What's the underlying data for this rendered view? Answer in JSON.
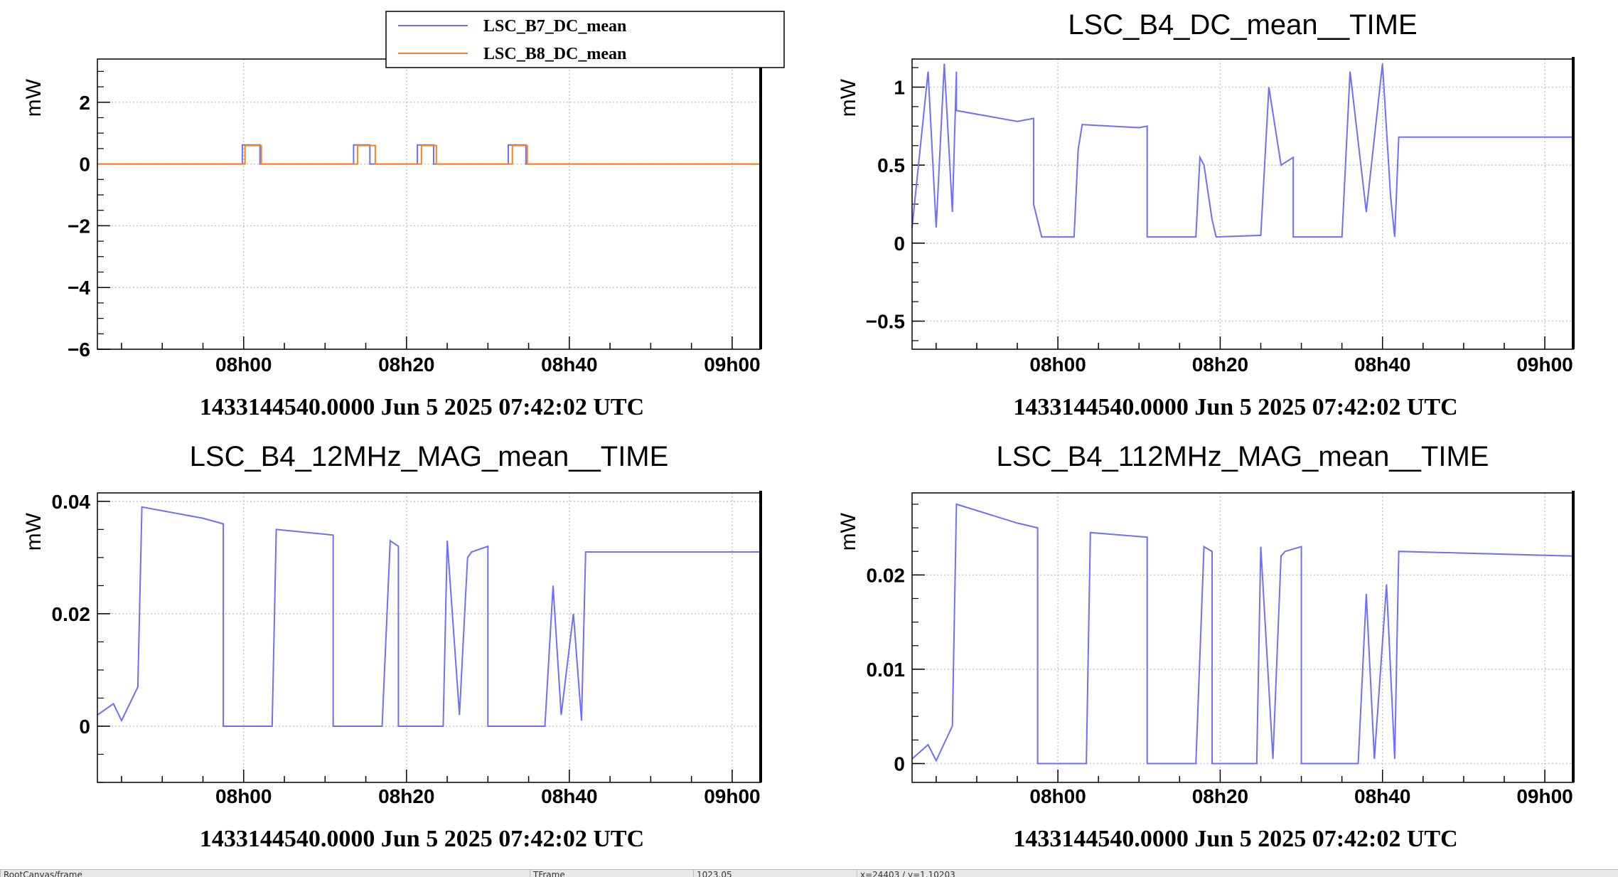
{
  "colors": {
    "blue": "#6e6eff",
    "orange": "#ff7f1f",
    "grid": "#c8c8c8",
    "axis": "#000000"
  },
  "statusbar": {
    "cells": [
      "RootCanvas/frame",
      "TFrame",
      "1023.05",
      "x=24403 / y=1.10203"
    ]
  },
  "chart_data": [
    {
      "type": "line",
      "panel": "top-left",
      "title": "",
      "ylabel": "mW",
      "xlabel": "1433144540.0000 Jun 5 2025 07:42:02 UTC",
      "time_axis": true,
      "xlim": [
        "07:42:02",
        "09:03:30"
      ],
      "ylim": [
        -6,
        3.4
      ],
      "xticks": [
        {
          "t": "08:00",
          "label": "08h00"
        },
        {
          "t": "08:20",
          "label": "08h20"
        },
        {
          "t": "08:40",
          "label": "08h40"
        },
        {
          "t": "09:00",
          "label": "09h00"
        }
      ],
      "yticks": [
        {
          "v": -6,
          "label": "−6"
        },
        {
          "v": -4,
          "label": "−4"
        },
        {
          "v": -2,
          "label": "−2"
        },
        {
          "v": 0,
          "label": "0"
        },
        {
          "v": 2,
          "label": "2"
        }
      ],
      "grid": true,
      "legend": {
        "placement": "top-right",
        "entries": [
          "LSC_B7_DC_mean",
          "LSC_B8_DC_mean"
        ]
      },
      "series": [
        {
          "name": "LSC_B7_DC_mean",
          "color": "blue",
          "x": [
            "07:42:02",
            "07:59:50",
            "07:59:50",
            "08:02:00",
            "08:02:00",
            "08:13:30",
            "08:13:30",
            "08:15:30",
            "08:15:30",
            "08:21:20",
            "08:21:20",
            "08:23:20",
            "08:23:20",
            "08:32:30",
            "08:32:30",
            "08:34:40",
            "08:34:40",
            "09:03:30"
          ],
          "values": [
            0,
            0,
            0.62,
            0.62,
            0,
            0,
            0.62,
            0.62,
            0,
            0,
            0.62,
            0.62,
            0,
            0,
            0.62,
            0.62,
            0,
            0
          ]
        },
        {
          "name": "LSC_B8_DC_mean",
          "color": "orange",
          "x": [
            "07:42:02",
            "08:00:10",
            "08:00:10",
            "08:02:10",
            "08:02:10",
            "08:14:00",
            "08:14:00",
            "08:16:10",
            "08:16:10",
            "08:21:50",
            "08:21:50",
            "08:23:40",
            "08:23:40",
            "08:33:00",
            "08:33:00",
            "08:34:50",
            "08:34:50",
            "09:03:30"
          ],
          "values": [
            0,
            0,
            0.6,
            0.6,
            0,
            0,
            0.6,
            0.6,
            0,
            0,
            0.6,
            0.6,
            0,
            0,
            0.6,
            0.6,
            0,
            0
          ]
        }
      ]
    },
    {
      "type": "line",
      "panel": "top-right",
      "title": "LSC_B4_DC_mean__TIME",
      "ylabel": "mW",
      "xlabel": "1433144540.0000 Jun 5 2025 07:42:02 UTC",
      "time_axis": true,
      "xlim": [
        "07:42:02",
        "09:03:30"
      ],
      "ylim": [
        -0.68,
        1.18
      ],
      "xticks": [
        {
          "t": "08:00",
          "label": "08h00"
        },
        {
          "t": "08:20",
          "label": "08h20"
        },
        {
          "t": "08:40",
          "label": "08h40"
        },
        {
          "t": "09:00",
          "label": "09h00"
        }
      ],
      "yticks": [
        {
          "v": -0.5,
          "label": "−0.5"
        },
        {
          "v": 0,
          "label": "0"
        },
        {
          "v": 0.5,
          "label": "0.5"
        },
        {
          "v": 1,
          "label": "1"
        }
      ],
      "grid": true,
      "series": [
        {
          "color": "blue",
          "x": [
            "07:42:02",
            "07:44:00",
            "07:45:00",
            "07:46:00",
            "07:47:00",
            "07:47:30",
            "07:47:30",
            "07:55:00",
            "07:57:00",
            "07:57:00",
            "07:58:00",
            "08:02:00",
            "08:02:30",
            "08:03:00",
            "08:10:00",
            "08:11:00",
            "08:11:00",
            "08:17:00",
            "08:17:30",
            "08:18:00",
            "08:19:00",
            "08:19:30",
            "08:25:00",
            "08:26:00",
            "08:27:30",
            "08:29:00",
            "08:29:00",
            "08:35:00",
            "08:36:00",
            "08:38:00",
            "08:40:00",
            "08:41:00",
            "08:41:30",
            "08:42:00",
            "09:03:30"
          ],
          "values": [
            0.1,
            1.1,
            0.1,
            1.15,
            0.2,
            1.1,
            0.85,
            0.78,
            0.8,
            0.25,
            0.04,
            0.04,
            0.6,
            0.76,
            0.74,
            0.75,
            0.04,
            0.04,
            0.55,
            0.5,
            0.15,
            0.04,
            0.05,
            1.0,
            0.5,
            0.55,
            0.04,
            0.04,
            1.1,
            0.2,
            1.15,
            0.3,
            0.04,
            0.68,
            0.68
          ]
        }
      ]
    },
    {
      "type": "line",
      "panel": "bottom-left",
      "title": "LSC_B4_12MHz_MAG_mean__TIME",
      "ylabel": "mW",
      "xlabel": "1433144540.0000 Jun 5 2025 07:42:02 UTC",
      "time_axis": true,
      "xlim": [
        "07:42:02",
        "09:03:30"
      ],
      "ylim": [
        -0.01,
        0.0415
      ],
      "xticks": [
        {
          "t": "08:00",
          "label": "08h00"
        },
        {
          "t": "08:20",
          "label": "08h20"
        },
        {
          "t": "08:40",
          "label": "08h40"
        },
        {
          "t": "09:00",
          "label": "09h00"
        }
      ],
      "yticks": [
        {
          "v": 0,
          "label": "0"
        },
        {
          "v": 0.02,
          "label": "0.02"
        },
        {
          "v": 0.04,
          "label": "0.04"
        }
      ],
      "grid": true,
      "series": [
        {
          "color": "blue",
          "x": [
            "07:42:02",
            "07:44:00",
            "07:45:00",
            "07:47:00",
            "07:47:30",
            "07:55:00",
            "07:57:30",
            "07:57:30",
            "08:03:30",
            "08:04:00",
            "08:11:00",
            "08:11:00",
            "08:17:00",
            "08:18:00",
            "08:19:00",
            "08:19:00",
            "08:24:30",
            "08:25:00",
            "08:26:30",
            "08:27:30",
            "08:28:00",
            "08:30:00",
            "08:30:00",
            "08:37:00",
            "08:38:00",
            "08:39:00",
            "08:40:30",
            "08:41:30",
            "08:42:00",
            "09:03:30"
          ],
          "values": [
            0.002,
            0.004,
            0.001,
            0.007,
            0.039,
            0.037,
            0.036,
            0.0,
            0.0,
            0.035,
            0.034,
            0.0,
            0.0,
            0.033,
            0.032,
            0.0,
            0.0,
            0.033,
            0.002,
            0.03,
            0.031,
            0.032,
            0.0,
            0.0,
            0.025,
            0.002,
            0.02,
            0.001,
            0.031,
            0.031
          ]
        }
      ]
    },
    {
      "type": "line",
      "panel": "bottom-right",
      "title": "LSC_B4_112MHz_MAG_mean__TIME",
      "ylabel": "mW",
      "xlabel": "1433144540.0000 Jun 5 2025 07:42:02 UTC",
      "time_axis": true,
      "xlim": [
        "07:42:02",
        "09:03:30"
      ],
      "ylim": [
        -0.002,
        0.0287
      ],
      "xticks": [
        {
          "t": "08:00",
          "label": "08h00"
        },
        {
          "t": "08:20",
          "label": "08h20"
        },
        {
          "t": "08:40",
          "label": "08h40"
        },
        {
          "t": "09:00",
          "label": "09h00"
        }
      ],
      "yticks": [
        {
          "v": 0,
          "label": "0"
        },
        {
          "v": 0.01,
          "label": "0.01"
        },
        {
          "v": 0.02,
          "label": "0.02"
        }
      ],
      "grid": true,
      "series": [
        {
          "color": "blue",
          "x": [
            "07:42:02",
            "07:44:00",
            "07:45:00",
            "07:47:00",
            "07:47:30",
            "07:55:00",
            "07:57:30",
            "07:57:30",
            "08:03:30",
            "08:04:00",
            "08:11:00",
            "08:11:00",
            "08:17:00",
            "08:18:00",
            "08:19:00",
            "08:19:00",
            "08:24:30",
            "08:25:00",
            "08:26:30",
            "08:27:30",
            "08:28:00",
            "08:30:00",
            "08:30:00",
            "08:37:00",
            "08:38:00",
            "08:39:00",
            "08:40:30",
            "08:41:30",
            "08:42:00",
            "09:03:30"
          ],
          "values": [
            0.0005,
            0.002,
            0.0003,
            0.004,
            0.0275,
            0.0255,
            0.025,
            0.0,
            0.0,
            0.0245,
            0.024,
            0.0,
            0.0,
            0.023,
            0.0225,
            0.0,
            0.0,
            0.023,
            0.0005,
            0.022,
            0.0225,
            0.023,
            0.0,
            0.0,
            0.018,
            0.0005,
            0.019,
            0.0005,
            0.0225,
            0.022
          ]
        }
      ]
    }
  ]
}
